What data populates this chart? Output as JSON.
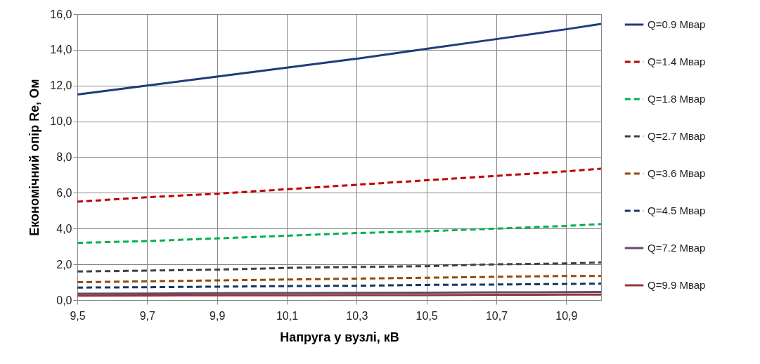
{
  "chart_data": {
    "type": "line",
    "xlabel": "Напруга у вузлі, кВ",
    "ylabel": "Економічний опір Re, Ом",
    "x": [
      9.5,
      9.7,
      9.9,
      10.1,
      10.3,
      10.5,
      10.7,
      10.9,
      11.0
    ],
    "xlim": [
      9.5,
      11.0
    ],
    "xticks": [
      {
        "value": 9.5,
        "label": "9,5"
      },
      {
        "value": 9.7,
        "label": "9,7"
      },
      {
        "value": 9.9,
        "label": "9,9"
      },
      {
        "value": 10.1,
        "label": "10,1"
      },
      {
        "value": 10.3,
        "label": "10,3"
      },
      {
        "value": 10.5,
        "label": "10,5"
      },
      {
        "value": 10.7,
        "label": "10,7"
      },
      {
        "value": 10.9,
        "label": "10,9"
      }
    ],
    "ylim": [
      0,
      16
    ],
    "yticks": [
      {
        "value": 0,
        "label": "0,0"
      },
      {
        "value": 2,
        "label": "2,0"
      },
      {
        "value": 4,
        "label": "4,0"
      },
      {
        "value": 6,
        "label": "6,0"
      },
      {
        "value": 8,
        "label": "8,0"
      },
      {
        "value": 10,
        "label": "10,0"
      },
      {
        "value": 12,
        "label": "12,0"
      },
      {
        "value": 14,
        "label": "14,0"
      },
      {
        "value": 16,
        "label": "16,0"
      }
    ],
    "grid": true,
    "legend": "right",
    "marker": "none",
    "series": [
      {
        "name": "Q=0.9 Мвар",
        "color": "#1f3d7a",
        "line_style": "solid",
        "values": [
          11.5,
          12.0,
          12.5,
          13.0,
          13.5,
          14.05,
          14.6,
          15.15,
          15.45
        ]
      },
      {
        "name": "Q=1.4 Мвар",
        "color": "#c00000",
        "line_style": "dashed",
        "values": [
          5.5,
          5.75,
          5.95,
          6.2,
          6.45,
          6.7,
          6.95,
          7.2,
          7.35
        ]
      },
      {
        "name": "Q=1.8 Мвар",
        "color": "#00b050",
        "line_style": "dashed",
        "values": [
          3.2,
          3.3,
          3.45,
          3.6,
          3.75,
          3.85,
          4.0,
          4.15,
          4.25
        ]
      },
      {
        "name": "Q=2.7 Мвар",
        "color": "#404040",
        "line_style": "dashed",
        "values": [
          1.6,
          1.65,
          1.7,
          1.8,
          1.85,
          1.9,
          2.0,
          2.05,
          2.1
        ]
      },
      {
        "name": "Q=3.6 Мвар",
        "color": "#984807",
        "line_style": "dashed",
        "values": [
          1.0,
          1.05,
          1.1,
          1.15,
          1.2,
          1.25,
          1.3,
          1.35,
          1.35
        ]
      },
      {
        "name": "Q=4.5 Мвар",
        "color": "#17375e",
        "line_style": "dashed",
        "values": [
          0.7,
          0.72,
          0.75,
          0.78,
          0.8,
          0.85,
          0.87,
          0.9,
          0.92
        ]
      },
      {
        "name": "Q=7.2 Мвар",
        "color": "#604a7b",
        "line_style": "solid",
        "values": [
          0.35,
          0.36,
          0.38,
          0.39,
          0.4,
          0.41,
          0.43,
          0.44,
          0.45
        ]
      },
      {
        "name": "Q=9.9 Мвар",
        "color": "#953735",
        "line_style": "solid",
        "values": [
          0.25,
          0.26,
          0.27,
          0.27,
          0.28,
          0.28,
          0.29,
          0.3,
          0.3
        ]
      }
    ]
  }
}
